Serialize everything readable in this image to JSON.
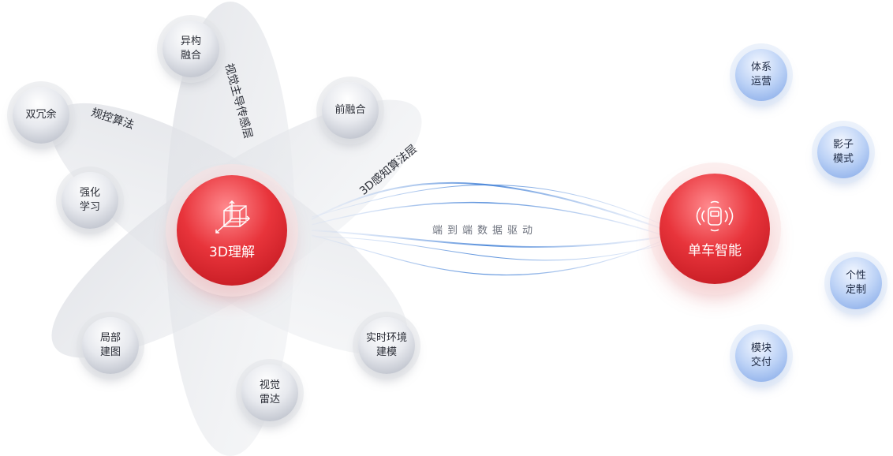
{
  "center_left": {
    "label": "3D理解",
    "icon": "cube-wireframe-icon"
  },
  "center_right": {
    "label": "单车智能",
    "icon": "vehicle-sensor-icon"
  },
  "band_labels": {
    "vision_layer": "视觉主导传感层",
    "control_algorithm": "规控算法",
    "perception_layer": "3D感知算法层"
  },
  "flow_label": "端到端数据驱动",
  "grey_nodes": [
    {
      "label": "异构\n融合"
    },
    {
      "label": "双冗余"
    },
    {
      "label": "前融合"
    },
    {
      "label": "强化\n学习"
    },
    {
      "label": "局部\n建图"
    },
    {
      "label": "视觉\n雷达"
    },
    {
      "label": "实时环境\n建模"
    }
  ],
  "blue_nodes": [
    {
      "label": "体系\n运营"
    },
    {
      "label": "影子\n模式"
    },
    {
      "label": "个性\n定制"
    },
    {
      "label": "模块\n交付"
    }
  ],
  "colors": {
    "accent_red": "#e8343b",
    "node_grey": "#d9dce3",
    "node_blue": "#a9c4f0",
    "flow_blue": "#4a86d8"
  }
}
